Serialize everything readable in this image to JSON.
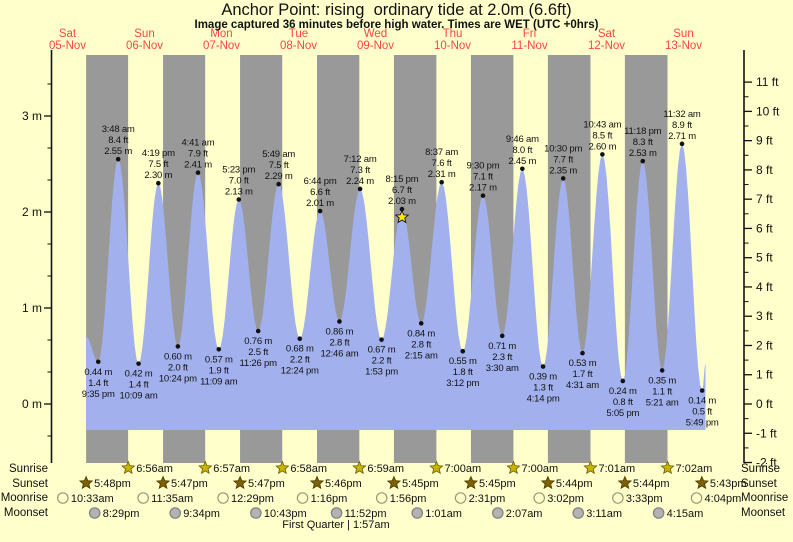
{
  "header": {
    "title": "Anchor Point: rising  ordinary tide at 2.0m (6.6ft)",
    "subtitle": "Image captured 36 minutes before high water. Times are WET (UTC +0hrs)"
  },
  "colors": {
    "background": "#FFFFCC",
    "night_band": "#999999",
    "day_band": "#FFFFCC",
    "tide_fill": "#A2B1ED",
    "day_label_red": "#FF4545",
    "sunrise_star": "#C8B400",
    "sunset_star": "#7E6000",
    "moonrise_circle": "#FFFFCC",
    "moonset_circle": "#B3B3B3",
    "marker_star": "#FFE800"
  },
  "chart_data": {
    "type": "area",
    "title": "Anchor Point tide height over 9 days",
    "ylabel_left": "metres",
    "ylabel_right": "feet",
    "y_left_ticks": [
      "0 m",
      "1 m",
      "2 m",
      "3 m"
    ],
    "y_right_ticks": [
      "-2 ft",
      "-1 ft",
      "0 ft",
      "1 ft",
      "2 ft",
      "3 ft",
      "4 ft",
      "5 ft",
      "6 ft",
      "7 ft",
      "8 ft",
      "9 ft",
      "10 ft",
      "11 ft"
    ],
    "ylim_m": [
      -0.6,
      3.6
    ],
    "grid": false,
    "days": [
      {
        "name": "Sat",
        "date": "05-Nov"
      },
      {
        "name": "Sun",
        "date": "06-Nov"
      },
      {
        "name": "Mon",
        "date": "07-Nov"
      },
      {
        "name": "Tue",
        "date": "08-Nov"
      },
      {
        "name": "Wed",
        "date": "09-Nov"
      },
      {
        "name": "Thu",
        "date": "10-Nov"
      },
      {
        "name": "Fri",
        "date": "11-Nov"
      },
      {
        "name": "Sat",
        "date": "12-Nov"
      },
      {
        "name": "Sun",
        "date": "13-Nov"
      }
    ],
    "tides": [
      {
        "day": 0,
        "time": "9:35 pm",
        "m": "0.44",
        "ft": "1.4",
        "type": "low"
      },
      {
        "day": 1,
        "time": "3:48 am",
        "m": "2.55",
        "ft": "8.4",
        "type": "high"
      },
      {
        "day": 1,
        "time": "10:09 am",
        "m": "0.42",
        "ft": "1.4",
        "type": "low"
      },
      {
        "day": 1,
        "time": "4:19 pm",
        "m": "2.30",
        "ft": "7.5",
        "type": "high"
      },
      {
        "day": 1,
        "time": "10:24 pm",
        "m": "0.60",
        "ft": "2.0",
        "type": "low"
      },
      {
        "day": 2,
        "time": "4:41 am",
        "m": "2.41",
        "ft": "7.9",
        "type": "high"
      },
      {
        "day": 2,
        "time": "11:09 am",
        "m": "0.57",
        "ft": "1.9",
        "type": "low"
      },
      {
        "day": 2,
        "time": "5:23 pm",
        "m": "2.13",
        "ft": "7.0",
        "type": "high"
      },
      {
        "day": 2,
        "time": "11:26 pm",
        "m": "0.76",
        "ft": "2.5",
        "type": "low"
      },
      {
        "day": 3,
        "time": "5:49 am",
        "m": "2.29",
        "ft": "7.5",
        "type": "high"
      },
      {
        "day": 3,
        "time": "12:24 pm",
        "m": "0.68",
        "ft": "2.2",
        "type": "low"
      },
      {
        "day": 3,
        "time": "6:44 pm",
        "m": "2.01",
        "ft": "6.6",
        "type": "high"
      },
      {
        "day": 4,
        "time": "12:46 am",
        "m": "0.86",
        "ft": "2.8",
        "type": "low"
      },
      {
        "day": 4,
        "time": "7:12 am",
        "m": "2.24",
        "ft": "7.3",
        "type": "high"
      },
      {
        "day": 4,
        "time": "1:53 pm",
        "m": "0.67",
        "ft": "2.2",
        "type": "low"
      },
      {
        "day": 4,
        "time": "8:15 pm",
        "m": "2.03",
        "ft": "6.7",
        "type": "high",
        "capture_marker": true
      },
      {
        "day": 5,
        "time": "2:15 am",
        "m": "0.84",
        "ft": "2.8",
        "type": "low"
      },
      {
        "day": 5,
        "time": "8:37 am",
        "m": "2.31",
        "ft": "7.6",
        "type": "high"
      },
      {
        "day": 5,
        "time": "3:12 pm",
        "m": "0.55",
        "ft": "1.8",
        "type": "low"
      },
      {
        "day": 5,
        "time": "9:30 pm",
        "m": "2.17",
        "ft": "7.1",
        "type": "high"
      },
      {
        "day": 6,
        "time": "3:30 am",
        "m": "0.71",
        "ft": "2.3",
        "type": "low"
      },
      {
        "day": 6,
        "time": "9:46 am",
        "m": "2.45",
        "ft": "8.0",
        "type": "high"
      },
      {
        "day": 6,
        "time": "4:14 pm",
        "m": "0.39",
        "ft": "1.3",
        "type": "low"
      },
      {
        "day": 6,
        "time": "10:30 pm",
        "m": "2.35",
        "ft": "7.7",
        "type": "high"
      },
      {
        "day": 7,
        "time": "4:31 am",
        "m": "0.53",
        "ft": "1.7",
        "type": "low"
      },
      {
        "day": 7,
        "time": "10:43 am",
        "m": "2.60",
        "ft": "8.5",
        "type": "high"
      },
      {
        "day": 7,
        "time": "5:05 pm",
        "m": "0.24",
        "ft": "0.8",
        "type": "low"
      },
      {
        "day": 7,
        "time": "11:18 pm",
        "m": "2.53",
        "ft": "8.3",
        "type": "high"
      },
      {
        "day": 8,
        "time": "5:21 am",
        "m": "0.35",
        "ft": "1.1",
        "type": "low"
      },
      {
        "day": 8,
        "time": "11:32 am",
        "m": "2.71",
        "ft": "8.9",
        "type": "high"
      },
      {
        "day": 8,
        "time": "5:49 pm",
        "m": "0.14",
        "ft": "0.5",
        "type": "low"
      }
    ],
    "capture_marker": {
      "day": 4,
      "time": "8:15 pm",
      "note": "yellow star at the high-water peak nearest image capture"
    }
  },
  "astro": {
    "row_labels": [
      "Sunrise",
      "Sunset",
      "Moonrise",
      "Moonset"
    ],
    "sunrise": [
      {
        "day": 1,
        "time": "6:56am"
      },
      {
        "day": 2,
        "time": "6:57am"
      },
      {
        "day": 3,
        "time": "6:58am"
      },
      {
        "day": 4,
        "time": "6:59am"
      },
      {
        "day": 5,
        "time": "7:00am"
      },
      {
        "day": 6,
        "time": "7:00am"
      },
      {
        "day": 7,
        "time": "7:01am"
      },
      {
        "day": 8,
        "time": "7:02am"
      }
    ],
    "sunset": [
      {
        "day": 0,
        "time": "5:48pm"
      },
      {
        "day": 1,
        "time": "5:47pm"
      },
      {
        "day": 2,
        "time": "5:47pm"
      },
      {
        "day": 3,
        "time": "5:46pm"
      },
      {
        "day": 4,
        "time": "5:45pm"
      },
      {
        "day": 5,
        "time": "5:45pm"
      },
      {
        "day": 6,
        "time": "5:44pm"
      },
      {
        "day": 7,
        "time": "5:44pm"
      },
      {
        "day": 8,
        "time": "5:43pm"
      }
    ],
    "moonrise": [
      {
        "day": 0,
        "time": "10:33am"
      },
      {
        "day": 1,
        "time": "11:35am"
      },
      {
        "day": 2,
        "time": "12:29pm"
      },
      {
        "day": 3,
        "time": "1:16pm"
      },
      {
        "day": 4,
        "time": "1:56pm"
      },
      {
        "day": 5,
        "time": "2:31pm"
      },
      {
        "day": 6,
        "time": "3:02pm"
      },
      {
        "day": 7,
        "time": "3:33pm"
      },
      {
        "day": 8,
        "time": "4:04pm"
      }
    ],
    "moonset": [
      {
        "day": 0,
        "time": "8:29pm"
      },
      {
        "day": 1,
        "time": "9:34pm"
      },
      {
        "day": 2,
        "time": "10:43pm"
      },
      {
        "day": 3,
        "time": "11:52pm"
      },
      {
        "day": 5,
        "time": "1:01am"
      },
      {
        "day": 6,
        "time": "2:07am"
      },
      {
        "day": 7,
        "time": "3:11am"
      },
      {
        "day": 8,
        "time": "4:15am"
      }
    ]
  },
  "footer": {
    "moon_phase": "First Quarter | 1:57am"
  }
}
